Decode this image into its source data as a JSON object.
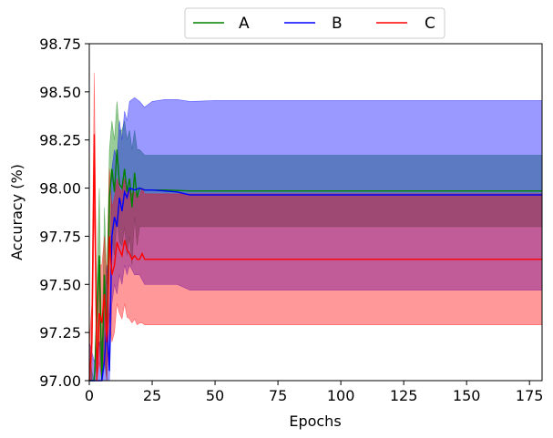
{
  "chart_data": {
    "type": "line",
    "title": "",
    "xlabel": "Epochs",
    "ylabel": "Accuracy (%)",
    "xlim": [
      0,
      180
    ],
    "ylim": [
      97.0,
      98.75
    ],
    "xticks": [
      0,
      25,
      50,
      75,
      100,
      125,
      150,
      175
    ],
    "yticks": [
      97.0,
      97.25,
      97.5,
      97.75,
      98.0,
      98.25,
      98.5,
      98.75
    ],
    "xtick_labels": [
      "0",
      "25",
      "50",
      "75",
      "100",
      "125",
      "150",
      "175"
    ],
    "ytick_labels": [
      "97.00",
      "97.25",
      "97.50",
      "97.75",
      "98.00",
      "98.25",
      "98.50",
      "98.75"
    ],
    "grid": false,
    "legend_position": "top-center",
    "series": [
      {
        "name": "A",
        "color": "#008000",
        "x": [
          0,
          2,
          4,
          5,
          6,
          7,
          8,
          9,
          10,
          11,
          12,
          13,
          14,
          15,
          16,
          17,
          18,
          19,
          20,
          22,
          25,
          30,
          40,
          50,
          100,
          180
        ],
        "mean": [
          97.0,
          96.9,
          97.65,
          96.95,
          97.55,
          97.2,
          97.95,
          98.1,
          97.98,
          98.2,
          98.02,
          98.0,
          98.1,
          97.98,
          98.05,
          97.9,
          98.08,
          97.95,
          98.0,
          97.99,
          97.99,
          97.99,
          97.985,
          97.985,
          97.985,
          97.985
        ],
        "lower": [
          96.9,
          96.8,
          97.2,
          96.8,
          97.1,
          96.9,
          97.6,
          97.75,
          97.65,
          97.85,
          97.72,
          97.7,
          97.8,
          97.65,
          97.75,
          97.6,
          97.85,
          97.7,
          97.8,
          97.8,
          97.8,
          97.8,
          97.8,
          97.8,
          97.8,
          97.8
        ],
        "upper": [
          97.1,
          97.0,
          98.0,
          97.1,
          97.9,
          97.5,
          98.2,
          98.35,
          98.25,
          98.45,
          98.3,
          98.3,
          98.35,
          98.25,
          98.3,
          98.2,
          98.3,
          98.2,
          98.2,
          98.17,
          98.17,
          98.17,
          98.17,
          98.17,
          98.17,
          98.17
        ]
      },
      {
        "name": "B",
        "color": "#0000ff",
        "x": [
          0,
          2,
          4,
          5,
          6,
          7,
          8,
          9,
          10,
          11,
          12,
          13,
          14,
          15,
          16,
          18,
          20,
          22,
          25,
          30,
          35,
          40,
          50,
          100,
          180
        ],
        "mean": [
          97.0,
          96.9,
          97.0,
          96.95,
          97.1,
          97.3,
          97.05,
          97.75,
          97.85,
          97.8,
          97.95,
          97.88,
          97.98,
          97.95,
          98.0,
          97.99,
          98.0,
          97.99,
          97.99,
          97.985,
          97.98,
          97.965,
          97.965,
          97.965,
          97.965
        ],
        "lower": [
          96.8,
          96.7,
          96.8,
          96.7,
          96.9,
          97.0,
          96.8,
          97.4,
          97.5,
          97.45,
          97.55,
          97.5,
          97.6,
          97.55,
          97.6,
          97.55,
          97.55,
          97.5,
          97.5,
          97.5,
          97.5,
          97.47,
          97.47,
          97.47,
          97.47
        ],
        "upper": [
          97.2,
          97.1,
          97.2,
          97.2,
          97.3,
          97.6,
          97.3,
          98.1,
          98.2,
          98.15,
          98.35,
          98.25,
          98.4,
          98.35,
          98.45,
          98.47,
          98.45,
          98.42,
          98.45,
          98.46,
          98.46,
          98.45,
          98.455,
          98.455,
          98.455
        ]
      },
      {
        "name": "C",
        "color": "#ff0000",
        "x": [
          0,
          1,
          2,
          3,
          4,
          5,
          6,
          7,
          8,
          9,
          10,
          11,
          12,
          13,
          14,
          15,
          16,
          17,
          18,
          19,
          20,
          21,
          22,
          25,
          30,
          40,
          50,
          100,
          180
        ],
        "mean": [
          97.0,
          97.2,
          98.28,
          97.0,
          97.35,
          97.3,
          97.45,
          97.2,
          97.75,
          97.55,
          97.6,
          97.72,
          97.68,
          97.65,
          97.73,
          97.68,
          97.66,
          97.63,
          97.65,
          97.63,
          97.63,
          97.66,
          97.63,
          97.63,
          97.63,
          97.63,
          97.63,
          97.63,
          97.63
        ],
        "lower": [
          96.8,
          97.0,
          97.9,
          96.8,
          97.1,
          97.0,
          97.15,
          96.9,
          97.35,
          97.2,
          97.25,
          97.4,
          97.35,
          97.32,
          97.4,
          97.33,
          97.32,
          97.3,
          97.32,
          97.29,
          97.3,
          97.3,
          97.29,
          97.29,
          97.29,
          97.29,
          97.29,
          97.29,
          97.29
        ],
        "upper": [
          97.2,
          97.4,
          98.6,
          97.2,
          97.6,
          97.6,
          97.75,
          97.5,
          98.1,
          97.9,
          97.95,
          98.05,
          98.0,
          97.98,
          98.05,
          98.0,
          97.99,
          97.97,
          97.98,
          97.96,
          97.96,
          98.0,
          97.97,
          97.97,
          97.97,
          97.97,
          97.97,
          97.97,
          97.97
        ]
      }
    ]
  }
}
